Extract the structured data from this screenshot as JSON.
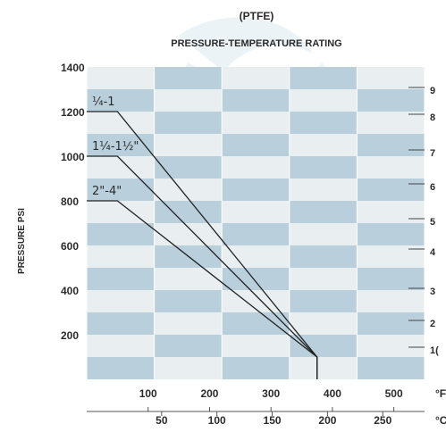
{
  "chart_data": {
    "type": "line",
    "title": "(PTFE)",
    "subtitle": "PRESSURE-TEMPERATURE RATING",
    "ylabel": "PRESSURE PSI",
    "ylim": [
      0,
      1400
    ],
    "yticks": [
      200,
      400,
      600,
      800,
      1000,
      1200,
      1400
    ],
    "x_unit_f": "°F",
    "x_unit_c": "°C",
    "xticks_f": [
      100,
      200,
      300,
      400,
      500
    ],
    "xticks_c": [
      50,
      100,
      150,
      200,
      250
    ],
    "xlim_f": [
      0,
      550
    ],
    "series": [
      {
        "name": "¼-1",
        "x": [
          0,
          50,
          375,
          375
        ],
        "y": [
          1200,
          1200,
          100,
          0
        ]
      },
      {
        "name": "1¼-1½\"",
        "x": [
          0,
          50,
          375,
          375
        ],
        "y": [
          1000,
          1000,
          100,
          0
        ]
      },
      {
        "name": "2\"-4\"",
        "x": [
          0,
          50,
          375,
          375
        ],
        "y": [
          800,
          800,
          100,
          0
        ]
      }
    ],
    "right_partial_labels": [
      "9",
      "8",
      "7",
      "6",
      "5",
      "4",
      "3",
      "2",
      "1("
    ],
    "grid": true,
    "background": {
      "light": "#e9eef1",
      "dark": "#b9d0dc"
    },
    "line_color": "#222222"
  }
}
